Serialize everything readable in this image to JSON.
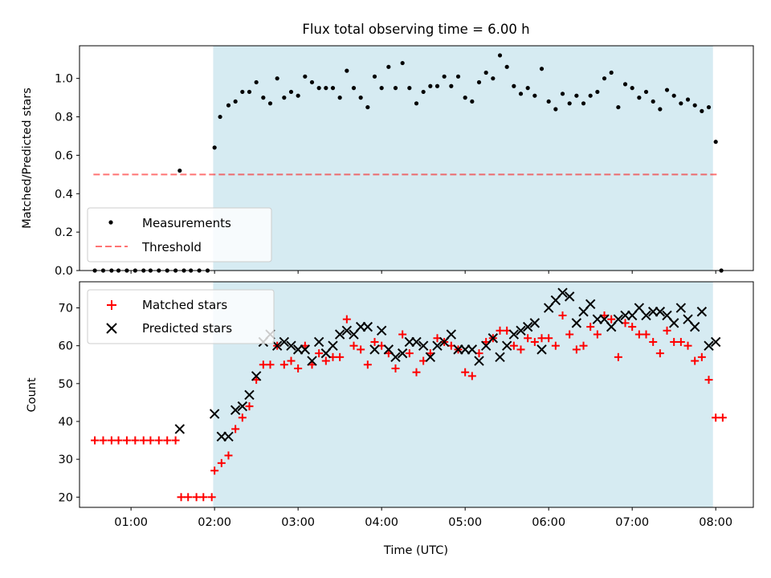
{
  "title": "Flux total observing time = 6.00 h",
  "colors": {
    "shade": "#add8e6",
    "measurement": "#000000",
    "threshold": "#ff0000",
    "matched": "#ff0000",
    "predicted": "#000000"
  },
  "chart_data": [
    {
      "type": "scatter",
      "panel": "top",
      "title": "Flux total observing time = 6.00 h",
      "xlabel": "",
      "ylabel": "Matched/Predicted stars",
      "xlim": [
        "00:23",
        "08:27"
      ],
      "ylim": [
        0,
        1.17
      ],
      "y_ticks": [
        "0.0",
        "0.2",
        "0.4",
        "0.6",
        "0.8",
        "1.0"
      ],
      "grid": false,
      "legend": "lower-left",
      "shaded_region": {
        "from": "01:59",
        "to": "07:58"
      },
      "threshold": {
        "value": 0.5,
        "from": "00:33",
        "to": "08:02",
        "style": "dashed"
      },
      "series": [
        {
          "name": "Measurements",
          "marker": "dot",
          "points": [
            [
              "00:34",
              0.0
            ],
            [
              "00:40",
              0.0
            ],
            [
              "00:46",
              0.0
            ],
            [
              "00:51",
              0.0
            ],
            [
              "00:57",
              0.0
            ],
            [
              "01:03",
              0.0
            ],
            [
              "01:09",
              0.0
            ],
            [
              "01:14",
              0.0
            ],
            [
              "01:20",
              0.0
            ],
            [
              "01:26",
              0.0
            ],
            [
              "01:32",
              0.0
            ],
            [
              "01:35",
              0.52
            ],
            [
              "01:38",
              0.0
            ],
            [
              "01:43",
              0.0
            ],
            [
              "01:49",
              0.0
            ],
            [
              "01:55",
              0.0
            ],
            [
              "02:00",
              0.64
            ],
            [
              "02:04",
              0.8
            ],
            [
              "02:10",
              0.86
            ],
            [
              "02:15",
              0.88
            ],
            [
              "02:20",
              0.93
            ],
            [
              "02:25",
              0.93
            ],
            [
              "02:30",
              0.98
            ],
            [
              "02:35",
              0.9
            ],
            [
              "02:40",
              0.87
            ],
            [
              "02:45",
              1.0
            ],
            [
              "02:50",
              0.9
            ],
            [
              "02:55",
              0.93
            ],
            [
              "03:00",
              0.91
            ],
            [
              "03:05",
              1.01
            ],
            [
              "03:10",
              0.98
            ],
            [
              "03:15",
              0.95
            ],
            [
              "03:20",
              0.95
            ],
            [
              "03:25",
              0.95
            ],
            [
              "03:30",
              0.9
            ],
            [
              "03:35",
              1.04
            ],
            [
              "03:40",
              0.95
            ],
            [
              "03:45",
              0.9
            ],
            [
              "03:50",
              0.85
            ],
            [
              "03:55",
              1.01
            ],
            [
              "04:00",
              0.95
            ],
            [
              "04:05",
              1.06
            ],
            [
              "04:10",
              0.95
            ],
            [
              "04:15",
              1.08
            ],
            [
              "04:20",
              0.95
            ],
            [
              "04:25",
              0.87
            ],
            [
              "04:30",
              0.93
            ],
            [
              "04:35",
              0.96
            ],
            [
              "04:40",
              0.96
            ],
            [
              "04:45",
              1.01
            ],
            [
              "04:50",
              0.96
            ],
            [
              "04:55",
              1.01
            ],
            [
              "05:00",
              0.9
            ],
            [
              "05:05",
              0.88
            ],
            [
              "05:10",
              0.98
            ],
            [
              "05:15",
              1.03
            ],
            [
              "05:20",
              1.0
            ],
            [
              "05:25",
              1.12
            ],
            [
              "05:30",
              1.06
            ],
            [
              "05:35",
              0.96
            ],
            [
              "05:40",
              0.92
            ],
            [
              "05:45",
              0.95
            ],
            [
              "05:50",
              0.91
            ],
            [
              "05:55",
              1.05
            ],
            [
              "06:00",
              0.88
            ],
            [
              "06:05",
              0.84
            ],
            [
              "06:10",
              0.92
            ],
            [
              "06:15",
              0.87
            ],
            [
              "06:20",
              0.91
            ],
            [
              "06:25",
              0.87
            ],
            [
              "06:30",
              0.91
            ],
            [
              "06:35",
              0.93
            ],
            [
              "06:40",
              1.0
            ],
            [
              "06:45",
              1.03
            ],
            [
              "06:50",
              0.85
            ],
            [
              "06:55",
              0.97
            ],
            [
              "07:00",
              0.95
            ],
            [
              "07:05",
              0.9
            ],
            [
              "07:10",
              0.93
            ],
            [
              "07:15",
              0.88
            ],
            [
              "07:20",
              0.84
            ],
            [
              "07:25",
              0.94
            ],
            [
              "07:30",
              0.91
            ],
            [
              "07:35",
              0.87
            ],
            [
              "07:40",
              0.89
            ],
            [
              "07:45",
              0.86
            ],
            [
              "07:50",
              0.83
            ],
            [
              "07:55",
              0.85
            ],
            [
              "08:00",
              0.67
            ],
            [
              "08:04",
              0.0
            ]
          ]
        }
      ],
      "threshold_name": "Threshold"
    },
    {
      "type": "scatter",
      "panel": "bottom",
      "xlabel": "Time (UTC)",
      "ylabel": "Count",
      "xlim": [
        "00:23",
        "08:27"
      ],
      "ylim": [
        17.3,
        76.9
      ],
      "x_ticks": [
        "01:00",
        "02:00",
        "03:00",
        "04:00",
        "05:00",
        "06:00",
        "07:00",
        "08:00"
      ],
      "y_ticks": [
        "20",
        "30",
        "40",
        "50",
        "60",
        "70"
      ],
      "grid": false,
      "legend": "upper-left",
      "shaded_region": {
        "from": "01:59",
        "to": "07:58"
      },
      "series": [
        {
          "name": "Matched stars",
          "marker": "plus",
          "points": [
            [
              "00:34",
              35
            ],
            [
              "00:40",
              35
            ],
            [
              "00:46",
              35
            ],
            [
              "00:51",
              35
            ],
            [
              "00:57",
              35
            ],
            [
              "01:03",
              35
            ],
            [
              "01:09",
              35
            ],
            [
              "01:14",
              35
            ],
            [
              "01:20",
              35
            ],
            [
              "01:26",
              35
            ],
            [
              "01:32",
              35
            ],
            [
              "01:36",
              20
            ],
            [
              "01:41",
              20
            ],
            [
              "01:47",
              20
            ],
            [
              "01:52",
              20
            ],
            [
              "01:58",
              20
            ],
            [
              "02:00",
              27
            ],
            [
              "02:05",
              29
            ],
            [
              "02:10",
              31
            ],
            [
              "02:15",
              38
            ],
            [
              "02:20",
              41
            ],
            [
              "02:25",
              44
            ],
            [
              "02:30",
              51
            ],
            [
              "02:35",
              55
            ],
            [
              "02:40",
              55
            ],
            [
              "02:45",
              60
            ],
            [
              "02:50",
              55
            ],
            [
              "02:55",
              56
            ],
            [
              "03:00",
              54
            ],
            [
              "03:05",
              60
            ],
            [
              "03:10",
              55
            ],
            [
              "03:15",
              58
            ],
            [
              "03:20",
              56
            ],
            [
              "03:25",
              57
            ],
            [
              "03:30",
              57
            ],
            [
              "03:35",
              67
            ],
            [
              "03:40",
              60
            ],
            [
              "03:45",
              59
            ],
            [
              "03:50",
              55
            ],
            [
              "03:55",
              61
            ],
            [
              "04:00",
              60
            ],
            [
              "04:05",
              58
            ],
            [
              "04:10",
              54
            ],
            [
              "04:15",
              63
            ],
            [
              "04:20",
              58
            ],
            [
              "04:25",
              53
            ],
            [
              "04:30",
              56
            ],
            [
              "04:35",
              58
            ],
            [
              "04:40",
              62
            ],
            [
              "04:45",
              61
            ],
            [
              "04:50",
              60
            ],
            [
              "04:55",
              59
            ],
            [
              "05:00",
              53
            ],
            [
              "05:05",
              52
            ],
            [
              "05:10",
              58
            ],
            [
              "05:15",
              61
            ],
            [
              "05:20",
              62
            ],
            [
              "05:25",
              64
            ],
            [
              "05:30",
              64
            ],
            [
              "05:35",
              60
            ],
            [
              "05:40",
              59
            ],
            [
              "05:45",
              62
            ],
            [
              "05:50",
              61
            ],
            [
              "05:55",
              62
            ],
            [
              "06:00",
              62
            ],
            [
              "06:05",
              60
            ],
            [
              "06:10",
              68
            ],
            [
              "06:15",
              63
            ],
            [
              "06:20",
              59
            ],
            [
              "06:25",
              60
            ],
            [
              "06:30",
              65
            ],
            [
              "06:35",
              63
            ],
            [
              "06:40",
              68
            ],
            [
              "06:45",
              67
            ],
            [
              "06:50",
              57
            ],
            [
              "06:55",
              66
            ],
            [
              "07:00",
              65
            ],
            [
              "07:05",
              63
            ],
            [
              "07:10",
              63
            ],
            [
              "07:15",
              61
            ],
            [
              "07:20",
              58
            ],
            [
              "07:25",
              64
            ],
            [
              "07:30",
              61
            ],
            [
              "07:35",
              61
            ],
            [
              "07:40",
              60
            ],
            [
              "07:45",
              56
            ],
            [
              "07:50",
              57
            ],
            [
              "07:55",
              51
            ],
            [
              "08:00",
              41
            ],
            [
              "08:05",
              41
            ]
          ]
        },
        {
          "name": "Predicted stars",
          "marker": "x",
          "points": [
            [
              "01:35",
              38
            ],
            [
              "02:00",
              42
            ],
            [
              "02:05",
              36
            ],
            [
              "02:10",
              36
            ],
            [
              "02:15",
              43
            ],
            [
              "02:20",
              44
            ],
            [
              "02:25",
              47
            ],
            [
              "02:30",
              52
            ],
            [
              "02:35",
              61
            ],
            [
              "02:40",
              63
            ],
            [
              "02:45",
              60
            ],
            [
              "02:50",
              61
            ],
            [
              "02:55",
              60
            ],
            [
              "03:00",
              59
            ],
            [
              "03:05",
              59
            ],
            [
              "03:10",
              56
            ],
            [
              "03:15",
              61
            ],
            [
              "03:20",
              58
            ],
            [
              "03:25",
              60
            ],
            [
              "03:30",
              63
            ],
            [
              "03:35",
              64
            ],
            [
              "03:40",
              63
            ],
            [
              "03:45",
              65
            ],
            [
              "03:50",
              65
            ],
            [
              "03:55",
              59
            ],
            [
              "04:00",
              64
            ],
            [
              "04:05",
              59
            ],
            [
              "04:10",
              57
            ],
            [
              "04:15",
              58
            ],
            [
              "04:20",
              61
            ],
            [
              "04:25",
              61
            ],
            [
              "04:30",
              60
            ],
            [
              "04:35",
              57
            ],
            [
              "04:40",
              60
            ],
            [
              "04:45",
              61
            ],
            [
              "04:50",
              63
            ],
            [
              "04:55",
              59
            ],
            [
              "05:00",
              59
            ],
            [
              "05:05",
              59
            ],
            [
              "05:10",
              56
            ],
            [
              "05:15",
              60
            ],
            [
              "05:20",
              62
            ],
            [
              "05:25",
              57
            ],
            [
              "05:30",
              60
            ],
            [
              "05:35",
              63
            ],
            [
              "05:40",
              64
            ],
            [
              "05:45",
              65
            ],
            [
              "05:50",
              66
            ],
            [
              "05:55",
              59
            ],
            [
              "06:00",
              70
            ],
            [
              "06:05",
              72
            ],
            [
              "06:10",
              74
            ],
            [
              "06:15",
              73
            ],
            [
              "06:20",
              66
            ],
            [
              "06:25",
              69
            ],
            [
              "06:30",
              71
            ],
            [
              "06:35",
              67
            ],
            [
              "06:40",
              67
            ],
            [
              "06:45",
              65
            ],
            [
              "06:50",
              67
            ],
            [
              "06:55",
              68
            ],
            [
              "07:00",
              68
            ],
            [
              "07:05",
              70
            ],
            [
              "07:10",
              68
            ],
            [
              "07:15",
              69
            ],
            [
              "07:20",
              69
            ],
            [
              "07:25",
              68
            ],
            [
              "07:30",
              66
            ],
            [
              "07:35",
              70
            ],
            [
              "07:40",
              67
            ],
            [
              "07:45",
              65
            ],
            [
              "07:50",
              69
            ],
            [
              "07:55",
              60
            ],
            [
              "08:00",
              61
            ]
          ]
        }
      ]
    }
  ]
}
